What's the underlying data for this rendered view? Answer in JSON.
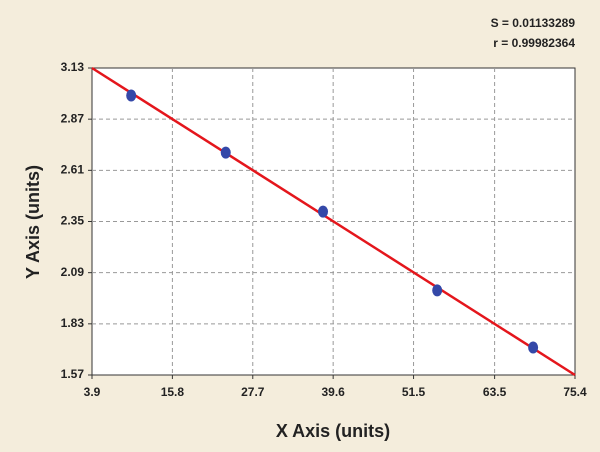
{
  "chart_data": {
    "type": "scatter",
    "annotations": [
      "S = 0.01133289",
      "r = 0.99982364"
    ],
    "x_label": "X Axis (units)",
    "y_label": "Y Axis (units)",
    "xlim": [
      3.9,
      75.4
    ],
    "ylim": [
      1.57,
      3.13
    ],
    "xticks": [
      3.9,
      15.8,
      27.7,
      39.6,
      51.5,
      63.5,
      75.4
    ],
    "yticks": [
      1.57,
      1.83,
      2.09,
      2.35,
      2.61,
      2.87,
      3.13
    ],
    "grid": true,
    "series": [
      {
        "style": "markers",
        "color": "#3448a8",
        "x": [
          9.7,
          23.7,
          38.1,
          55.0,
          69.2
        ],
        "values": [
          2.99,
          2.7,
          2.4,
          2.0,
          1.71
        ]
      },
      {
        "style": "line",
        "color": "#e4161c",
        "x": [
          3.9,
          75.4
        ],
        "values": [
          3.13,
          1.57
        ]
      }
    ]
  }
}
